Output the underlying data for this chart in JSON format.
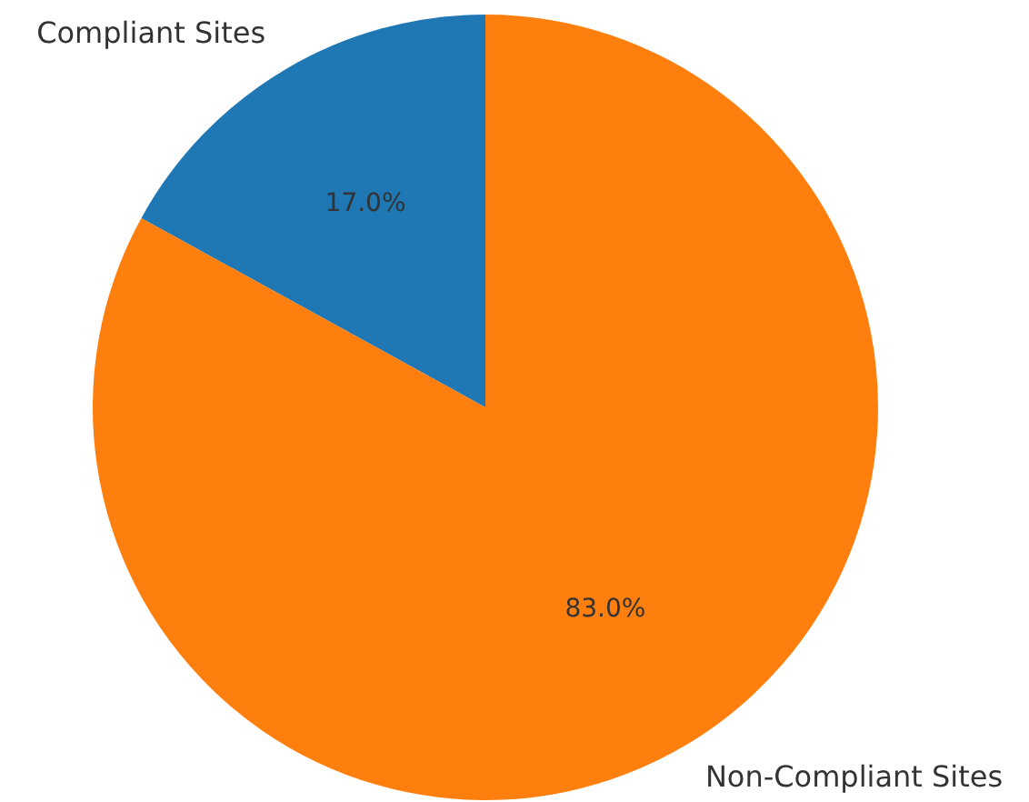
{
  "chart_data": {
    "type": "pie",
    "categories": [
      "Compliant Sites",
      "Non-Compliant Sites"
    ],
    "values": [
      17,
      83
    ],
    "colors": [
      "#1f77b4",
      "#ff7f0e"
    ],
    "value_labels": [
      "17.0%",
      "83.0%"
    ],
    "legend": false
  }
}
